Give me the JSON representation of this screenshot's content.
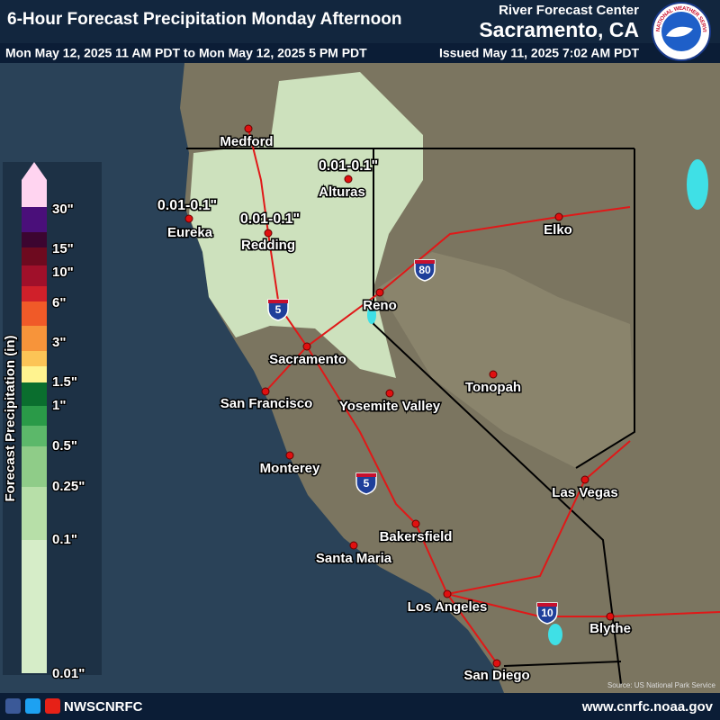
{
  "header": {
    "title": "6-Hour Forecast Precipitation Monday Afternoon",
    "center": "River Forecast Center",
    "location": "Sacramento, CA",
    "valid_period": "Mon May 12, 2025 11 AM PDT to Mon May 12, 2025 5 PM PDT",
    "issued": "Issued May 11, 2025 7:02 AM PDT",
    "logo_text": "NATIONAL WEATHER SERVICE"
  },
  "legend": {
    "title": "Forecast Precipitation (in)",
    "labels": [
      "30\"",
      "15\"",
      "10\"",
      "6\"",
      "3\"",
      "1.5\"",
      "1\"",
      "0.5\"",
      "0.25\"",
      "0.1\"",
      "0.01\""
    ]
  },
  "cities": [
    "Medford",
    "Eureka",
    "Redding",
    "Alturas",
    "Reno",
    "Elko",
    "Sacramento",
    "San Francisco",
    "Yosemite Valley",
    "Tonopah",
    "Monterey",
    "Las Vegas",
    "Bakersfield",
    "Santa Maria",
    "Los Angeles",
    "Blythe",
    "San Diego"
  ],
  "annotations": [
    "0.01-0.1\"",
    "0.01-0.1\"",
    "0.01-0.1\""
  ],
  "interstates": [
    "80",
    "5",
    "5",
    "10"
  ],
  "source": "Source: US National Park Service",
  "footer": {
    "handle": "NWSCNRFC",
    "url": "www.cnrfc.noaa.gov"
  }
}
